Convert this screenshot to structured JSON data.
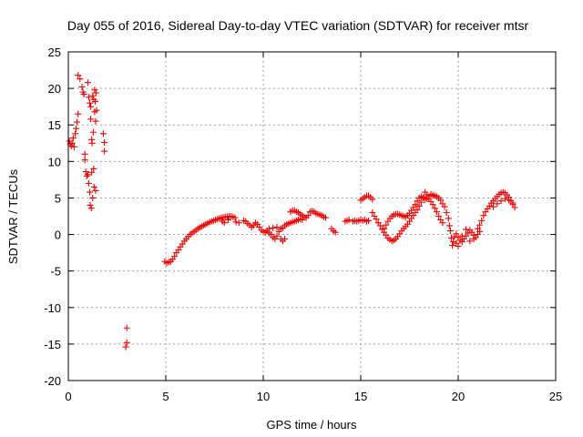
{
  "chart_data": {
    "type": "scatter",
    "title": "Day 055 of 2016, Sidereal Day-to-day VTEC variation (SDTVAR) for receiver mtsr",
    "xlabel": "GPS time / hours",
    "ylabel": "SDTVAR / TECUs",
    "xlim": [
      0,
      25
    ],
    "ylim": [
      -20,
      25
    ],
    "xticks": [
      "0",
      "5",
      "10",
      "15",
      "20",
      "25"
    ],
    "yticks": [
      "-20",
      "-15",
      "-10",
      "-5",
      "0",
      "5",
      "10",
      "15",
      "20",
      "25"
    ],
    "grid": true,
    "marker": "+",
    "marker_color": "#ee0000",
    "series": [
      {
        "name": "SDTVAR",
        "points": [
          [
            0.05,
            12.8
          ],
          [
            0.1,
            12.4
          ],
          [
            0.15,
            12.1
          ],
          [
            0.2,
            12.5
          ],
          [
            0.25,
            13.2
          ],
          [
            0.3,
            12.0
          ],
          [
            0.35,
            13.8
          ],
          [
            0.4,
            14.5
          ],
          [
            0.45,
            15.4
          ],
          [
            0.5,
            16.5
          ],
          [
            0.5,
            21.8
          ],
          [
            0.6,
            21.3
          ],
          [
            0.7,
            20.2
          ],
          [
            0.75,
            19.5
          ],
          [
            0.8,
            19.2
          ],
          [
            0.85,
            11.0
          ],
          [
            0.85,
            10.2
          ],
          [
            0.9,
            8.6
          ],
          [
            0.95,
            8.0
          ],
          [
            1.0,
            8.2
          ],
          [
            1.0,
            20.8
          ],
          [
            1.05,
            18.8
          ],
          [
            1.05,
            7.0
          ],
          [
            1.1,
            18.0
          ],
          [
            1.1,
            5.8
          ],
          [
            1.12,
            4.0
          ],
          [
            1.15,
            15.8
          ],
          [
            1.15,
            17.5
          ],
          [
            1.18,
            3.6
          ],
          [
            1.2,
            8.5
          ],
          [
            1.2,
            13.0
          ],
          [
            1.22,
            12.5
          ],
          [
            1.25,
            19.0
          ],
          [
            1.25,
            5.0
          ],
          [
            1.28,
            14.0
          ],
          [
            1.3,
            18.5
          ],
          [
            1.3,
            9.0
          ],
          [
            1.32,
            6.5
          ],
          [
            1.35,
            19.8
          ],
          [
            1.35,
            16.8
          ],
          [
            1.38,
            18.2
          ],
          [
            1.4,
            15.5
          ],
          [
            1.4,
            6.0
          ],
          [
            1.42,
            19.4
          ],
          [
            1.45,
            17.0
          ],
          [
            1.8,
            13.8
          ],
          [
            1.85,
            12.6
          ],
          [
            1.85,
            11.4
          ],
          [
            3.0,
            -12.8
          ],
          [
            3.0,
            -14.8
          ],
          [
            2.95,
            -15.4
          ],
          [
            4.95,
            -3.7
          ],
          [
            5.05,
            -3.9
          ],
          [
            5.15,
            -3.8
          ],
          [
            5.25,
            -3.7
          ],
          [
            5.35,
            -3.4
          ],
          [
            5.45,
            -3.0
          ],
          [
            5.55,
            -2.5
          ],
          [
            5.65,
            -2.1
          ],
          [
            5.75,
            -1.7
          ],
          [
            5.85,
            -1.3
          ],
          [
            5.95,
            -0.9
          ],
          [
            6.05,
            -0.6
          ],
          [
            6.15,
            -0.3
          ],
          [
            6.25,
            0.0
          ],
          [
            6.35,
            0.2
          ],
          [
            6.45,
            0.4
          ],
          [
            6.55,
            0.6
          ],
          [
            6.65,
            0.8
          ],
          [
            6.75,
            0.95
          ],
          [
            6.85,
            1.1
          ],
          [
            6.95,
            1.25
          ],
          [
            7.05,
            1.4
          ],
          [
            7.15,
            1.55
          ],
          [
            7.25,
            1.7
          ],
          [
            7.35,
            1.8
          ],
          [
            7.45,
            1.9
          ],
          [
            7.55,
            2.0
          ],
          [
            7.65,
            2.1
          ],
          [
            7.75,
            2.2
          ],
          [
            7.85,
            2.3
          ],
          [
            7.95,
            2.35
          ],
          [
            8.05,
            2.4
          ],
          [
            8.15,
            2.45
          ],
          [
            8.25,
            2.5
          ],
          [
            8.35,
            2.5
          ],
          [
            8.45,
            2.4
          ],
          [
            8.55,
            2.3
          ],
          [
            7.9,
            1.8
          ],
          [
            8.0,
            1.6
          ],
          [
            8.2,
            2.0
          ],
          [
            8.6,
            1.7
          ],
          [
            8.75,
            1.6
          ],
          [
            9.0,
            1.9
          ],
          [
            9.1,
            1.8
          ],
          [
            9.2,
            1.5
          ],
          [
            9.3,
            1.3
          ],
          [
            9.4,
            1.0
          ],
          [
            9.5,
            1.2
          ],
          [
            9.6,
            1.6
          ],
          [
            9.7,
            1.4
          ],
          [
            9.8,
            1.0
          ],
          [
            9.9,
            0.6
          ],
          [
            10.0,
            0.4
          ],
          [
            10.1,
            0.3
          ],
          [
            10.2,
            0.5
          ],
          [
            10.3,
            0.2
          ],
          [
            10.4,
            0.0
          ],
          [
            10.5,
            -0.4
          ],
          [
            10.6,
            -0.6
          ],
          [
            10.7,
            -0.2
          ],
          [
            10.8,
            0.4
          ],
          [
            10.9,
            0.8
          ],
          [
            11.0,
            0.9
          ],
          [
            11.1,
            1.2
          ],
          [
            11.2,
            1.4
          ],
          [
            11.3,
            1.5
          ],
          [
            11.4,
            1.6
          ],
          [
            11.5,
            1.7
          ],
          [
            11.6,
            1.8
          ],
          [
            11.7,
            1.9
          ],
          [
            11.8,
            2.0
          ],
          [
            11.9,
            2.1
          ],
          [
            12.0,
            2.0
          ],
          [
            10.3,
            0.8
          ],
          [
            10.5,
            0.9
          ],
          [
            10.7,
            1.0
          ],
          [
            10.9,
            -0.6
          ],
          [
            11.0,
            -0.9
          ],
          [
            11.1,
            -0.6
          ],
          [
            11.4,
            3.1
          ],
          [
            11.5,
            3.3
          ],
          [
            11.6,
            3.3
          ],
          [
            11.7,
            3.1
          ],
          [
            11.8,
            3.0
          ],
          [
            11.9,
            2.8
          ],
          [
            12.0,
            2.6
          ],
          [
            12.1,
            2.4
          ],
          [
            12.2,
            2.3
          ],
          [
            12.3,
            2.6
          ],
          [
            12.4,
            3.1
          ],
          [
            12.5,
            3.2
          ],
          [
            12.6,
            3.1
          ],
          [
            12.7,
            2.9
          ],
          [
            12.8,
            2.8
          ],
          [
            12.9,
            2.7
          ],
          [
            13.0,
            2.6
          ],
          [
            13.1,
            2.4
          ],
          [
            13.2,
            2.3
          ],
          [
            13.5,
            0.8
          ],
          [
            13.6,
            0.5
          ],
          [
            13.7,
            0.3
          ],
          [
            14.2,
            1.8
          ],
          [
            14.3,
            1.9
          ],
          [
            14.4,
            2.0
          ],
          [
            14.6,
            1.8
          ],
          [
            14.7,
            1.9
          ],
          [
            14.8,
            1.8
          ],
          [
            14.9,
            1.9
          ],
          [
            15.0,
            2.0
          ],
          [
            15.1,
            1.9
          ],
          [
            15.2,
            2.0
          ],
          [
            15.3,
            1.8
          ],
          [
            15.4,
            1.9
          ],
          [
            15.0,
            4.7
          ],
          [
            15.1,
            4.9
          ],
          [
            15.2,
            5.1
          ],
          [
            15.3,
            5.3
          ],
          [
            15.4,
            5.3
          ],
          [
            15.5,
            5.1
          ],
          [
            15.6,
            4.8
          ],
          [
            15.6,
            3.0
          ],
          [
            15.7,
            2.5
          ],
          [
            15.8,
            2.1
          ],
          [
            15.9,
            1.6
          ],
          [
            16.0,
            1.2
          ],
          [
            16.1,
            0.7
          ],
          [
            16.2,
            0.3
          ],
          [
            16.3,
            -0.1
          ],
          [
            16.4,
            -0.5
          ],
          [
            16.5,
            -0.7
          ],
          [
            16.6,
            -0.9
          ],
          [
            16.7,
            -0.8
          ],
          [
            16.8,
            -0.6
          ],
          [
            16.9,
            -0.3
          ],
          [
            17.0,
            0.1
          ],
          [
            17.1,
            0.5
          ],
          [
            17.2,
            0.8
          ],
          [
            17.3,
            1.1
          ],
          [
            17.4,
            1.4
          ],
          [
            17.5,
            1.8
          ],
          [
            17.6,
            2.2
          ],
          [
            17.7,
            2.6
          ],
          [
            17.8,
            3.0
          ],
          [
            17.9,
            3.4
          ],
          [
            18.0,
            3.9
          ],
          [
            18.1,
            4.4
          ],
          [
            18.2,
            5.1
          ],
          [
            18.3,
            5.8
          ],
          [
            18.4,
            5.4
          ],
          [
            18.5,
            4.9
          ],
          [
            18.6,
            4.5
          ],
          [
            18.7,
            4.1
          ],
          [
            18.8,
            3.6
          ],
          [
            18.9,
            3.1
          ],
          [
            19.0,
            2.5
          ],
          [
            19.1,
            2.0
          ],
          [
            19.2,
            1.6
          ],
          [
            16.2,
            0.8
          ],
          [
            16.3,
            1.3
          ],
          [
            16.4,
            1.8
          ],
          [
            16.5,
            2.2
          ],
          [
            16.6,
            2.5
          ],
          [
            16.7,
            2.7
          ],
          [
            16.8,
            2.8
          ],
          [
            16.9,
            2.8
          ],
          [
            17.0,
            2.7
          ],
          [
            17.1,
            2.6
          ],
          [
            17.2,
            2.5
          ],
          [
            17.3,
            2.4
          ],
          [
            17.4,
            2.6
          ],
          [
            17.5,
            2.9
          ],
          [
            17.6,
            3.3
          ],
          [
            17.7,
            3.7
          ],
          [
            17.8,
            4.1
          ],
          [
            17.9,
            4.6
          ],
          [
            18.0,
            5.0
          ],
          [
            18.1,
            5.2
          ],
          [
            18.2,
            5.0
          ],
          [
            18.3,
            4.8
          ],
          [
            18.4,
            4.9
          ],
          [
            18.5,
            5.2
          ],
          [
            18.6,
            5.5
          ],
          [
            18.7,
            5.4
          ],
          [
            18.8,
            5.3
          ],
          [
            18.9,
            5.2
          ],
          [
            19.0,
            5.0
          ],
          [
            19.1,
            4.7
          ],
          [
            19.2,
            4.2
          ],
          [
            19.3,
            3.8
          ],
          [
            19.4,
            3.0
          ],
          [
            19.5,
            2.2
          ],
          [
            19.55,
            1.2
          ],
          [
            19.6,
            0.5
          ],
          [
            19.65,
            -0.5
          ],
          [
            19.7,
            -1.5
          ],
          [
            19.75,
            -1.0
          ],
          [
            19.8,
            -0.3
          ],
          [
            19.9,
            0.1
          ],
          [
            20.0,
            -0.4
          ],
          [
            20.1,
            -0.8
          ],
          [
            20.2,
            -1.0
          ],
          [
            20.3,
            -0.6
          ],
          [
            20.4,
            -0.2
          ],
          [
            20.5,
            0.2
          ],
          [
            20.6,
            0.6
          ],
          [
            20.7,
            0.3
          ],
          [
            20.8,
            -0.1
          ],
          [
            20.9,
            -0.4
          ],
          [
            19.9,
            -1.2
          ],
          [
            20.0,
            -1.6
          ],
          [
            20.2,
            -0.2
          ],
          [
            20.4,
            0.7
          ],
          [
            20.6,
            -0.9
          ],
          [
            20.8,
            -0.6
          ],
          [
            21.0,
            0.0
          ],
          [
            21.1,
            0.4
          ],
          [
            21.0,
            0.8
          ],
          [
            21.1,
            1.3
          ],
          [
            21.2,
            1.9
          ],
          [
            21.3,
            2.6
          ],
          [
            21.4,
            3.1
          ],
          [
            21.5,
            3.5
          ],
          [
            21.6,
            3.9
          ],
          [
            21.7,
            4.3
          ],
          [
            21.8,
            4.6
          ],
          [
            21.9,
            4.9
          ],
          [
            22.0,
            5.2
          ],
          [
            22.1,
            5.5
          ],
          [
            22.2,
            5.7
          ],
          [
            22.3,
            5.8
          ],
          [
            22.4,
            5.7
          ],
          [
            22.5,
            5.4
          ],
          [
            22.6,
            5.1
          ],
          [
            22.7,
            4.6
          ],
          [
            22.8,
            4.1
          ],
          [
            22.9,
            3.7
          ],
          [
            21.8,
            3.8
          ],
          [
            22.0,
            4.2
          ],
          [
            22.2,
            4.6
          ],
          [
            22.4,
            4.9
          ],
          [
            22.6,
            4.7
          ],
          [
            22.8,
            4.3
          ]
        ]
      }
    ]
  }
}
